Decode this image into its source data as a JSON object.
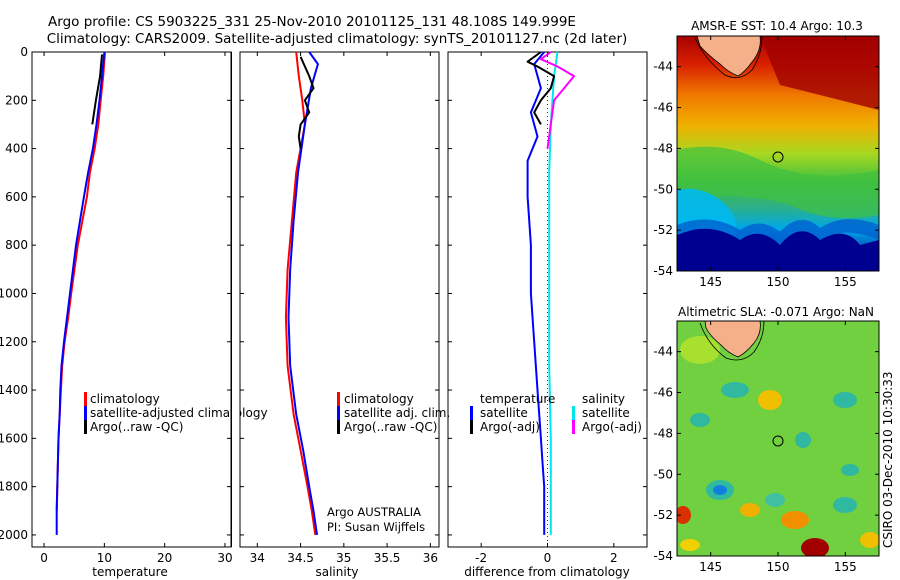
{
  "header": {
    "line1": "Argo profile: CS 5903225_331 25-Nov-2010 20101125_131 48.108S 149.999E",
    "line2": "Climatology: CARS2009. Satellite-adjusted climatology: synTS_20101127.nc (2d later)"
  },
  "side_stamp": "CSIRO 03-Dec-2010 10:30:33",
  "chart_data": [
    {
      "type": "line",
      "xlabel": "temperature",
      "xlim": [
        -2,
        31
      ],
      "ylim": [
        0,
        2050
      ],
      "y_reversed": true,
      "xticks": [
        0,
        10,
        20,
        30
      ],
      "yticks": [
        0,
        200,
        400,
        600,
        800,
        1000,
        1200,
        1400,
        1600,
        1800,
        2000
      ],
      "legend": {
        "placement": "bottom-right",
        "entries": [
          "climatology",
          "satellite-adjusted climatology",
          "Argo(..raw -QC)"
        ]
      },
      "series": [
        {
          "name": "climatology",
          "color": "#ff0000",
          "x": [
            10.1,
            9.8,
            9.4,
            9.0,
            8.4,
            7.6,
            7.1,
            5.6,
            4.5,
            4.0,
            3.4,
            3.0,
            2.8,
            2.6,
            2.4,
            2.3,
            2.2,
            2.1
          ],
          "y": [
            0,
            100,
            200,
            300,
            400,
            500,
            600,
            800,
            1000,
            1100,
            1200,
            1300,
            1400,
            1500,
            1600,
            1700,
            1800,
            1900
          ]
        },
        {
          "name": "satellite-adjusted climatology",
          "color": "#0000ff",
          "x": [
            10.0,
            9.6,
            9.2,
            8.7,
            8.1,
            7.3,
            6.6,
            5.3,
            4.3,
            3.8,
            3.3,
            2.9,
            2.7,
            2.6,
            2.4,
            2.3,
            2.2,
            2.1,
            2.1
          ],
          "y": [
            0,
            100,
            200,
            300,
            400,
            500,
            600,
            800,
            1000,
            1100,
            1200,
            1300,
            1400,
            1500,
            1600,
            1700,
            1800,
            1900,
            2000
          ]
        },
        {
          "name": "Argo(..raw -QC)",
          "color": "#000000",
          "x": [
            9.6,
            9.3,
            8.6,
            8.3,
            8.0
          ],
          "y": [
            10,
            100,
            200,
            250,
            300
          ]
        }
      ]
    },
    {
      "type": "line",
      "xlabel": "salinity",
      "xlim": [
        33.8,
        36.1
      ],
      "ylim": [
        0,
        2050
      ],
      "y_reversed": true,
      "xticks": [
        34,
        34.5,
        35,
        35.5,
        36
      ],
      "legend": {
        "placement": "bottom-right",
        "entries": [
          "climatology",
          "satellite adj. clim.",
          "Argo(..raw -QC)"
        ]
      },
      "annotation": [
        "Argo AUSTRALIA",
        "PI: Susan Wijffels"
      ],
      "series": [
        {
          "name": "climatology",
          "color": "#ff0000",
          "x": [
            34.45,
            34.48,
            34.52,
            34.55,
            34.45,
            34.4,
            34.35,
            34.33,
            34.35,
            34.42,
            34.5,
            34.58,
            34.63,
            34.67
          ],
          "y": [
            0,
            100,
            200,
            300,
            500,
            700,
            900,
            1100,
            1300,
            1500,
            1650,
            1800,
            1900,
            2000
          ]
        },
        {
          "name": "satellite adj. clim.",
          "color": "#0000ff",
          "x": [
            34.6,
            34.7,
            34.62,
            34.55,
            34.47,
            34.42,
            34.38,
            34.36,
            34.38,
            34.45,
            34.53,
            34.6,
            34.65,
            34.69
          ],
          "y": [
            0,
            50,
            150,
            300,
            500,
            700,
            900,
            1100,
            1300,
            1500,
            1650,
            1800,
            1900,
            2000
          ]
        },
        {
          "name": "Argo(..raw -QC)",
          "color": "#000000",
          "x": [
            34.5,
            34.6,
            34.65,
            34.55,
            34.6,
            34.5,
            34.48,
            34.5
          ],
          "y": [
            20,
            100,
            150,
            200,
            250,
            300,
            350,
            400
          ]
        }
      ]
    },
    {
      "type": "line",
      "xlabel": "difference from climatology",
      "xlim": [
        -3.0,
        3.0
      ],
      "ylim": [
        0,
        2050
      ],
      "y_reversed": true,
      "xticks": [
        -2,
        0,
        2
      ],
      "legend": {
        "placement": "bottom",
        "columns": [
          {
            "heading": "temperature",
            "entries": [
              "satellite",
              "Argo(-adj)"
            ]
          },
          {
            "heading": "salinity",
            "entries": [
              "satellite",
              "Argo(-adj)"
            ]
          }
        ]
      },
      "series": [
        {
          "name": "temperature satellite",
          "color": "#0000ff",
          "x": [
            -0.1,
            -0.4,
            -0.2,
            -0.5,
            -0.3,
            -0.6,
            -0.6,
            -0.5,
            -0.5,
            -0.4,
            -0.3,
            -0.25,
            -0.2,
            -0.15,
            -0.1,
            -0.1,
            -0.1
          ],
          "y": [
            0,
            50,
            150,
            250,
            350,
            450,
            600,
            800,
            1000,
            1200,
            1400,
            1500,
            1600,
            1700,
            1800,
            1900,
            2000
          ]
        },
        {
          "name": "salinity satellite",
          "color": "#00e5ee",
          "x": [
            0.3,
            0.2,
            0.1,
            0.05,
            0.05,
            0.05,
            0.05,
            0.1,
            0.1,
            0.1
          ],
          "y": [
            0,
            100,
            300,
            500,
            700,
            1000,
            1300,
            1600,
            1800,
            2000
          ]
        },
        {
          "name": "temperature Argo(-adj)",
          "color": "#000000",
          "x": [
            -0.2,
            -0.6,
            -0.3,
            0.2,
            0.1,
            -0.2,
            -0.4,
            -0.2
          ],
          "y": [
            0,
            40,
            60,
            100,
            150,
            200,
            250,
            300
          ]
        },
        {
          "name": "salinity Argo(-adj)",
          "color": "#ff00ff",
          "x": [
            0.1,
            -0.2,
            0.3,
            0.8,
            0.5,
            0.2,
            0.1,
            0.0
          ],
          "y": [
            0,
            30,
            60,
            100,
            150,
            200,
            300,
            400
          ]
        }
      ]
    },
    {
      "type": "heatmap",
      "title": "AMSR-E SST: 10.4 Argo: 10.3",
      "xticks": [
        145,
        150,
        155
      ],
      "yticks": [
        -44,
        -46,
        -48,
        -50,
        -52,
        -54
      ],
      "xlim": [
        142.5,
        157.5
      ],
      "ylim": [
        -54,
        -42.5
      ],
      "marker": {
        "lon": 150.0,
        "lat": -48.1
      }
    },
    {
      "type": "heatmap",
      "title": "Altimetric SLA: -0.071 Argo: NaN",
      "xticks": [
        145,
        150,
        155
      ],
      "yticks": [
        -44,
        -46,
        -48,
        -50,
        -52,
        -54
      ],
      "xlim": [
        142.5,
        157.5
      ],
      "ylim": [
        -54,
        -42.5
      ],
      "marker": {
        "lon": 150.0,
        "lat": -48.1
      }
    }
  ]
}
